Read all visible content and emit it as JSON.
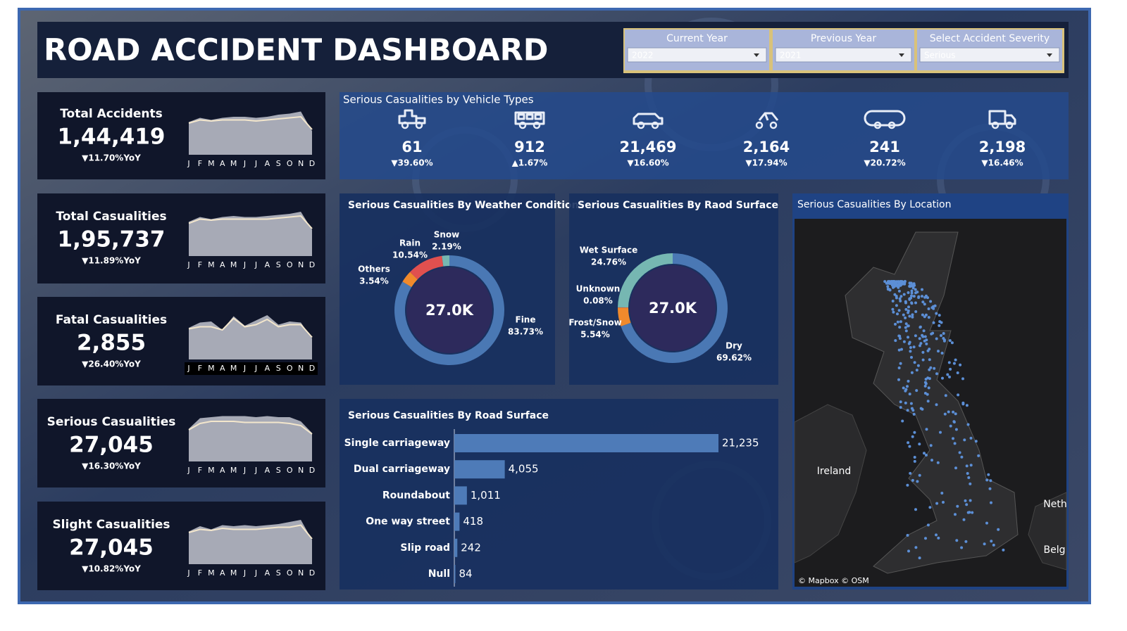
{
  "header": {
    "title": "ROAD ACCIDENT DASHBOARD"
  },
  "filters": [
    {
      "label": "Current Year",
      "value": "2022"
    },
    {
      "label": "Previous Year",
      "value": "2021"
    },
    {
      "label": "Select Accident Severity",
      "value": "Serious"
    }
  ],
  "kpis": [
    {
      "title": "Total Accidents",
      "value": "1,44,419",
      "change": "▼11.70%YoY"
    },
    {
      "title": "Total Casualities",
      "value": "1,95,737",
      "change": "▼11.89%YoY"
    },
    {
      "title": "Fatal Casualities",
      "value": "2,855",
      "change": "▼26.40%YoY"
    },
    {
      "title": "Serious Casualities",
      "value": "27,045",
      "change": "▼16.30%YoY"
    },
    {
      "title": "Slight Casualities",
      "value": "27,045",
      "change": "▼10.82%YoY"
    }
  ],
  "vehicle_types": {
    "title": "Serious Casualities by Vehicle Types",
    "items": [
      {
        "value": "61",
        "change": "▼39.60%"
      },
      {
        "value": "912",
        "change": "▲1.67%"
      },
      {
        "value": "21,469",
        "change": "▼16.60%"
      },
      {
        "value": "2,164",
        "change": "▼17.94%"
      },
      {
        "value": "241",
        "change": "▼20.72%"
      },
      {
        "value": "2,198",
        "change": "▼16.46%"
      }
    ]
  },
  "chart_data": [
    {
      "type": "area",
      "categories": [
        "J",
        "F",
        "M",
        "A",
        "M",
        "J",
        "J",
        "A",
        "S",
        "O",
        "N",
        "D"
      ],
      "ylim": [
        0,
        100
      ],
      "series": [
        {
          "color": "#a7aab6",
          "fill": true,
          "values": [
            62,
            70,
            66,
            70,
            72,
            72,
            70,
            72,
            76,
            78,
            82,
            45
          ]
        },
        {
          "color": "#f3e6cc",
          "fill": false,
          "values": [
            60,
            66,
            64,
            66,
            66,
            66,
            64,
            66,
            68,
            70,
            72,
            48
          ]
        }
      ]
    },
    {
      "type": "area",
      "categories": [
        "J",
        "F",
        "M",
        "A",
        "M",
        "J",
        "J",
        "A",
        "S",
        "O",
        "N",
        "D"
      ],
      "ylim": [
        0,
        100
      ],
      "series": [
        {
          "color": "#a7aab6",
          "fill": true,
          "values": [
            65,
            74,
            70,
            74,
            76,
            74,
            74,
            76,
            78,
            80,
            84,
            50
          ]
        },
        {
          "color": "#f3e6cc",
          "fill": false,
          "values": [
            62,
            70,
            68,
            70,
            70,
            70,
            70,
            70,
            72,
            74,
            76,
            52
          ]
        }
      ]
    },
    {
      "type": "area",
      "categories": [
        "J",
        "F",
        "M",
        "A",
        "M",
        "J",
        "J",
        "A",
        "S",
        "O",
        "N",
        "D"
      ],
      "ylim": [
        0,
        100
      ],
      "series": [
        {
          "color": "#a7aab6",
          "fill": true,
          "values": [
            60,
            70,
            72,
            56,
            82,
            64,
            74,
            84,
            66,
            72,
            70,
            40
          ]
        },
        {
          "color": "#f3e6cc",
          "fill": false,
          "values": [
            58,
            62,
            62,
            56,
            78,
            62,
            66,
            76,
            62,
            66,
            66,
            42
          ]
        }
      ]
    },
    {
      "type": "area",
      "categories": [
        "J",
        "F",
        "M",
        "A",
        "M",
        "J",
        "J",
        "A",
        "S",
        "O",
        "N",
        "D"
      ],
      "ylim": [
        0,
        100
      ],
      "series": [
        {
          "color": "#a7aab6",
          "fill": true,
          "values": [
            62,
            82,
            84,
            86,
            86,
            86,
            84,
            86,
            84,
            84,
            76,
            54
          ]
        },
        {
          "color": "#f3e6cc",
          "fill": false,
          "values": [
            60,
            72,
            76,
            76,
            76,
            74,
            74,
            74,
            74,
            72,
            68,
            52
          ]
        }
      ]
    },
    {
      "type": "area",
      "categories": [
        "J",
        "F",
        "M",
        "A",
        "M",
        "J",
        "J",
        "A",
        "S",
        "O",
        "N",
        "D"
      ],
      "ylim": [
        0,
        100
      ],
      "series": [
        {
          "color": "#a7aab6",
          "fill": true,
          "values": [
            62,
            72,
            66,
            74,
            72,
            74,
            72,
            74,
            76,
            80,
            84,
            46
          ]
        },
        {
          "color": "#f3e6cc",
          "fill": false,
          "values": [
            60,
            66,
            64,
            68,
            66,
            66,
            66,
            68,
            70,
            70,
            74,
            48
          ]
        }
      ]
    },
    {
      "type": "pie",
      "title": "Serious Casualities By Weather Condition",
      "center_label": "27.0K",
      "categories": [
        "Fine",
        "Others",
        "Rain",
        "Snow"
      ],
      "values": [
        83.73,
        3.54,
        10.54,
        2.19
      ],
      "value_labels": [
        "83.73%",
        "3.54%",
        "10.54%",
        "2.19%"
      ],
      "colors": [
        "#4a78b4",
        "#f08a2c",
        "#e0504f",
        "#76b7b2"
      ]
    },
    {
      "type": "pie",
      "title": "Serious Casualities By Raod Surface",
      "center_label": "27.0K",
      "categories": [
        "Dry",
        "Frost/Snow",
        "Unknown",
        "Wet Surface"
      ],
      "values": [
        69.62,
        5.54,
        0.08,
        24.76
      ],
      "value_labels": [
        "69.62%",
        "5.54%",
        "0.08%",
        "24.76%"
      ],
      "colors": [
        "#4a78b4",
        "#f08a2c",
        "#e0504f",
        "#76b7b2"
      ]
    },
    {
      "type": "bar",
      "title": "Serious Casualities By Road Surface",
      "color": "#4e7bb8",
      "categories": [
        "Single carriageway",
        "Dual carriageway",
        "Roundabout",
        "One way street",
        "Slip road",
        "Null"
      ],
      "values": [
        21235,
        4055,
        1011,
        418,
        242,
        84
      ],
      "value_labels": [
        "21,235",
        "4,055",
        "1,011",
        "418",
        "242",
        "84"
      ]
    }
  ],
  "map": {
    "title": "Serious Casualities By Location",
    "labels": [
      "Ireland",
      "Neth",
      "Belg"
    ],
    "attribution": "© Mapbox © OSM"
  }
}
